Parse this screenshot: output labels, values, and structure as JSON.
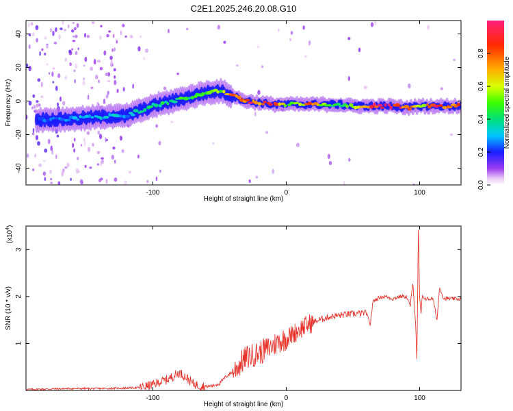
{
  "figure_title": "C2E1.2025.246.20.08.G10",
  "chart_data": [
    {
      "type": "heatmap",
      "title": "C2E1.2025.246.20.08.G10",
      "xlabel": "Height of straight line (km)",
      "ylabel": "Frequency (Hz)",
      "xlim": [
        -195,
        131
      ],
      "ylim": [
        -50,
        48
      ],
      "x_ticks": [
        -100,
        0,
        100
      ],
      "y_ticks": [
        -40,
        -20,
        0,
        20,
        40
      ],
      "colorbar": {
        "label": "Normalized spectral amplitude",
        "range": [
          0,
          1
        ],
        "ticks": [
          0.0,
          0.2,
          0.4,
          0.6,
          0.8
        ]
      },
      "ridge": {
        "x": [
          -190,
          -170,
          -150,
          -130,
          -120,
          -110,
          -100,
          -90,
          -80,
          -70,
          -60,
          -50,
          -40,
          -30,
          -20,
          -10,
          0,
          10,
          20,
          30,
          40,
          50,
          60,
          70,
          80,
          90,
          100,
          110,
          120,
          130
        ],
        "freq": [
          -11,
          -11,
          -10,
          -9,
          -9,
          -6,
          -3,
          -1,
          1,
          3,
          5,
          6,
          3,
          0,
          -1,
          -2,
          -2,
          -2,
          -2,
          -2,
          -2,
          -3,
          -3,
          -3,
          -3,
          -4,
          -3,
          -3,
          -3,
          -3
        ],
        "amplitude": [
          0.25,
          0.3,
          0.35,
          0.35,
          0.3,
          0.4,
          0.45,
          0.45,
          0.5,
          0.5,
          0.55,
          0.6,
          0.9,
          0.95,
          0.9,
          0.95,
          0.55,
          0.6,
          0.95,
          0.5,
          0.5,
          0.55,
          0.95,
          0.95,
          0.95,
          0.95,
          0.55,
          0.95,
          0.95,
          0.95
        ]
      }
    },
    {
      "type": "line",
      "xlabel": "Height of straight line (km)",
      "ylabel": "SNR (10 * v/v)",
      "y_scale_note": "(x10",
      "y_scale_exponent": "4",
      "xlim": [
        -195,
        131
      ],
      "ylim": [
        0,
        3.5
      ],
      "x_ticks": [
        -100,
        0,
        100
      ],
      "y_ticks": [
        1,
        2,
        3
      ],
      "line_color": "#e8332a",
      "series": [
        {
          "name": "SNR",
          "x": [
            -195,
            -180,
            -160,
            -140,
            -120,
            -110,
            -100,
            -95,
            -90,
            -85,
            -80,
            -75,
            -70,
            -65,
            -60,
            -55,
            -50,
            -45,
            -40,
            -35,
            -30,
            -25,
            -20,
            -15,
            -10,
            -5,
            0,
            5,
            10,
            15,
            20,
            25,
            30,
            35,
            40,
            45,
            50,
            55,
            60,
            63,
            65,
            70,
            75,
            80,
            85,
            90,
            93,
            95,
            97,
            98,
            99,
            100,
            101,
            102,
            105,
            110,
            113,
            115,
            118,
            120,
            125,
            130
          ],
          "y": [
            0.02,
            0.03,
            0.04,
            0.04,
            0.05,
            0.06,
            0.12,
            0.18,
            0.22,
            0.3,
            0.38,
            0.28,
            0.15,
            0.1,
            0.08,
            0.1,
            0.15,
            0.3,
            0.4,
            0.55,
            0.7,
            0.75,
            0.8,
            0.88,
            0.95,
            1.05,
            1.1,
            1.2,
            1.3,
            1.38,
            1.45,
            1.5,
            1.55,
            1.58,
            1.6,
            1.62,
            1.63,
            1.64,
            1.65,
            1.4,
            1.9,
            1.98,
            2.0,
            1.95,
            2.0,
            2.0,
            1.8,
            2.3,
            1.4,
            0.6,
            3.4,
            2.0,
            1.6,
            2.0,
            1.95,
            1.95,
            1.5,
            2.2,
            1.95,
            1.96,
            1.95,
            1.95
          ]
        }
      ]
    }
  ]
}
